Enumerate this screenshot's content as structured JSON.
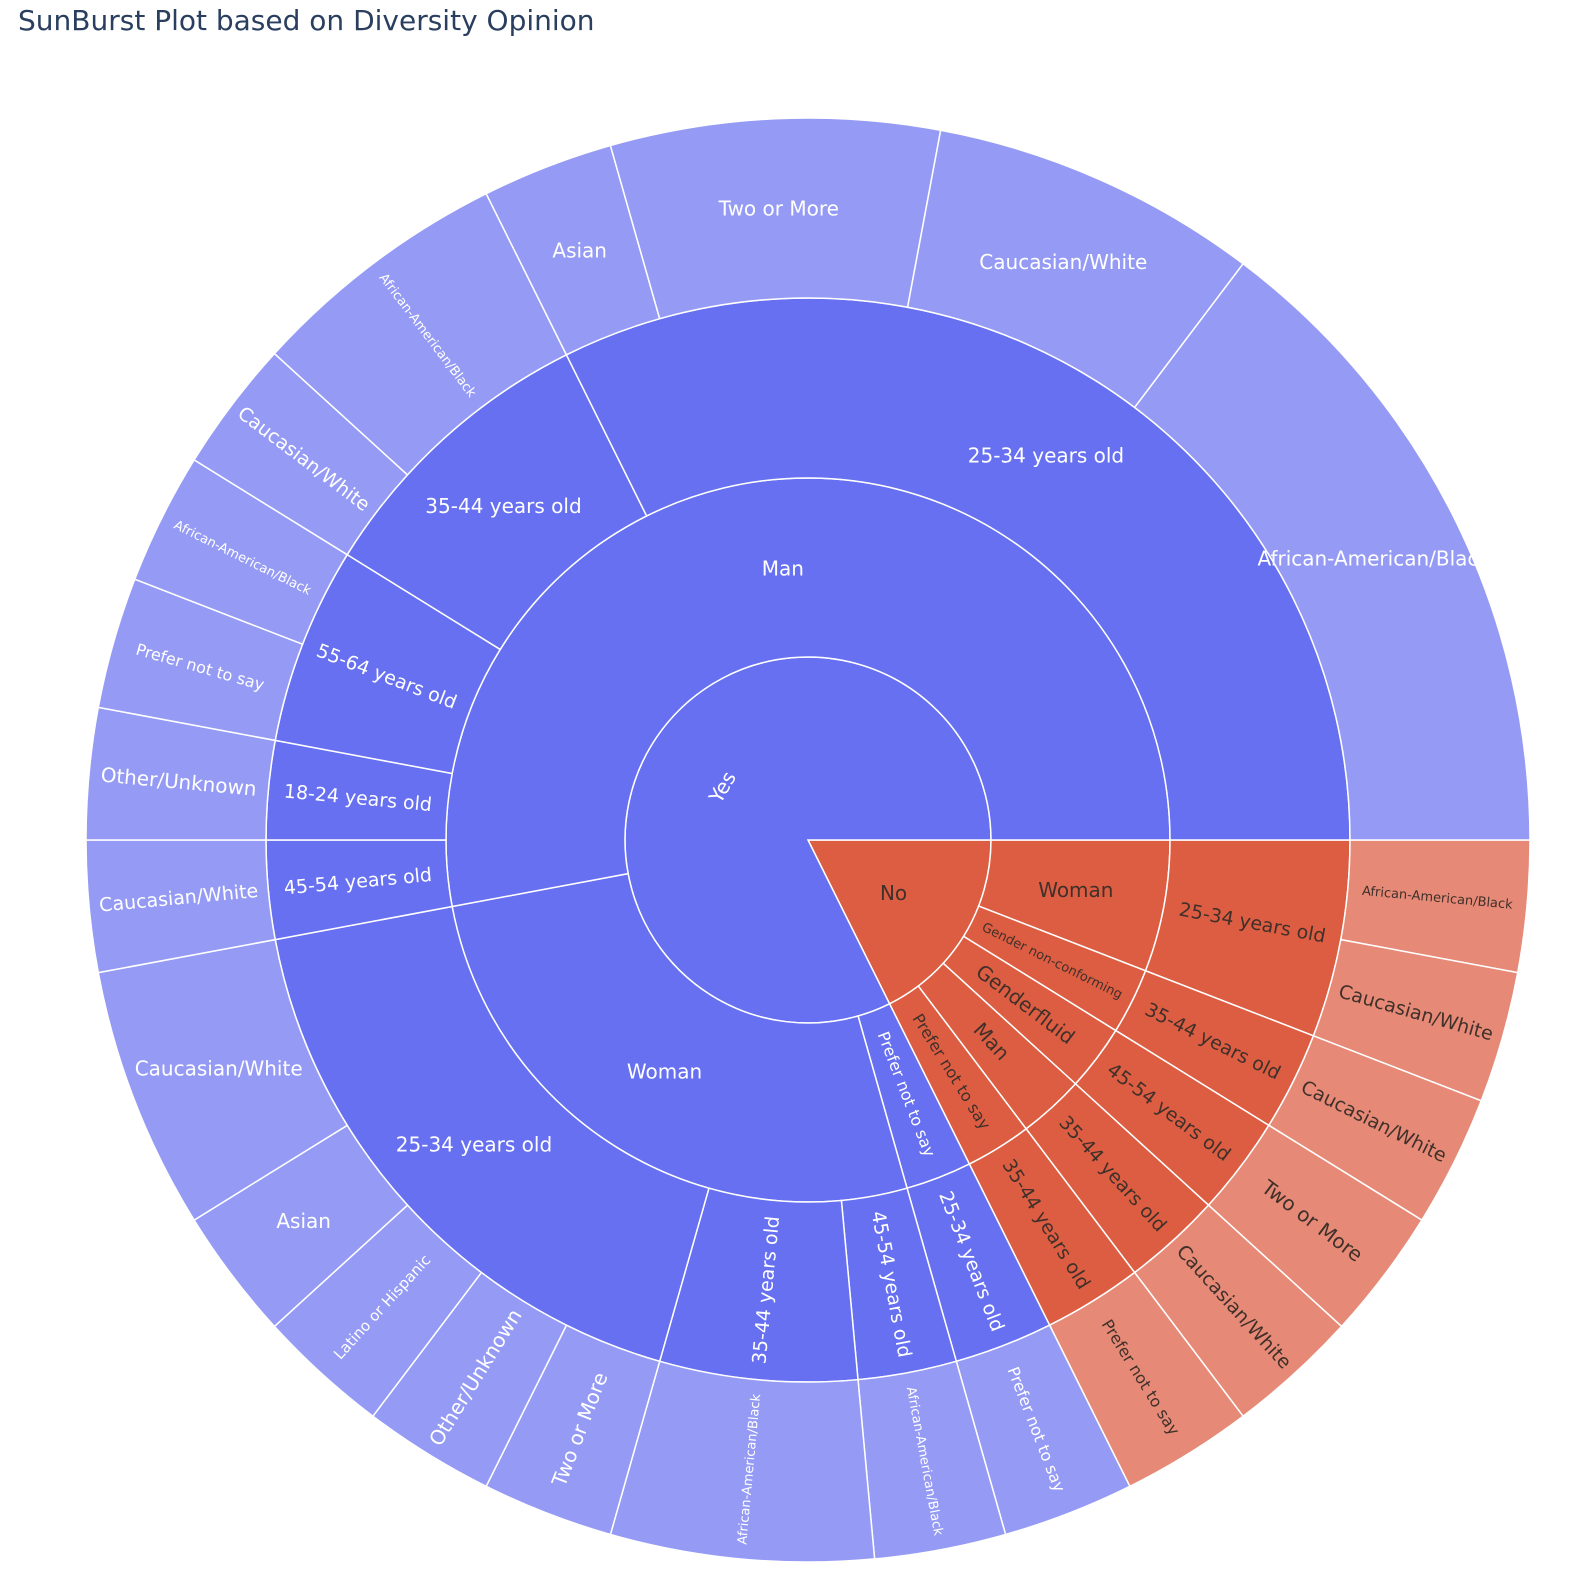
{
  "chart_data": {
    "type": "sunburst",
    "title": "SunBurst Plot based on Diversity Opinion",
    "colors": {
      "Yes": [
        "#6670f0",
        "#6670f0",
        "#6670f0",
        "#959bf4"
      ],
      "No": [
        "#dc5d42",
        "#dc5d42",
        "#dc5d42",
        "#e68a77"
      ],
      "label_on_blue": "#ffffff",
      "label_on_orange": "#40302a"
    },
    "root": {
      "children": [
        {
          "label": "Yes",
          "children": [
            {
              "label": "Man",
              "children": [
                {
                  "label": "25-34 years old",
                  "children": [
                    {
                      "label": "African-American/Black",
                      "value": 6
                    },
                    {
                      "label": "Caucasian/White",
                      "value": 3
                    },
                    {
                      "label": "Two or More",
                      "value": 3
                    },
                    {
                      "label": "Asian",
                      "value": 1.2
                    }
                  ]
                },
                {
                  "label": "35-44 years old",
                  "children": [
                    {
                      "label": "African-American/Black",
                      "value": 2.4
                    },
                    {
                      "label": "Caucasian/White",
                      "value": 1.2
                    }
                  ]
                },
                {
                  "label": "55-64 years old",
                  "children": [
                    {
                      "label": "African-American/Black",
                      "value": 1.2
                    },
                    {
                      "label": "Prefer not to say",
                      "value": 1.2
                    }
                  ]
                },
                {
                  "label": "18-24 years old",
                  "children": [
                    {
                      "label": "Other/Unknown",
                      "value": 1.2
                    }
                  ]
                },
                {
                  "label": "45-54 years old",
                  "children": [
                    {
                      "label": "Caucasian/White",
                      "value": 1.2
                    }
                  ]
                }
              ]
            },
            {
              "label": "Woman",
              "children": [
                {
                  "label": "25-34 years old",
                  "children": [
                    {
                      "label": "Caucasian/White",
                      "value": 2.4
                    },
                    {
                      "label": "Asian",
                      "value": 1.2
                    },
                    {
                      "label": "Latino or Hispanic",
                      "value": 1.2
                    },
                    {
                      "label": "Other/Unknown",
                      "value": 1.2
                    },
                    {
                      "label": "Two or More",
                      "value": 1.2
                    }
                  ]
                },
                {
                  "label": "35-44 years old",
                  "children": [
                    {
                      "label": "African-American/Black",
                      "value": 2.4
                    }
                  ]
                },
                {
                  "label": "45-54 years old",
                  "children": [
                    {
                      "label": "African-American/Black",
                      "value": 1.2
                    }
                  ]
                }
              ]
            },
            {
              "label": "Prefer not to say",
              "children": [
                {
                  "label": "25-34 years old",
                  "children": [
                    {
                      "label": "Prefer not to say",
                      "value": 1.2
                    }
                  ]
                }
              ]
            }
          ]
        },
        {
          "label": "No",
          "children": [
            {
              "label": "Woman",
              "children": [
                {
                  "label": "25-34 years old",
                  "children": [
                    {
                      "label": "African-American/Black",
                      "value": 1.2
                    },
                    {
                      "label": "Caucasian/White",
                      "value": 1.2
                    }
                  ]
                }
              ]
            },
            {
              "label": "Gender non-conforming",
              "children": [
                {
                  "label": "35-44 years old",
                  "children": [
                    {
                      "label": "Caucasian/White",
                      "value": 1.2
                    }
                  ]
                }
              ]
            },
            {
              "label": "Genderfluid",
              "children": [
                {
                  "label": "45-54 years old",
                  "children": [
                    {
                      "label": "Two or More",
                      "value": 1.2
                    }
                  ]
                }
              ]
            },
            {
              "label": "Man",
              "children": [
                {
                  "label": "35-44 years old",
                  "children": [
                    {
                      "label": "Caucasian/White",
                      "value": 1.2
                    }
                  ]
                }
              ]
            },
            {
              "label": "Prefer not to say",
              "children": [
                {
                  "label": "35-44 years old",
                  "children": [
                    {
                      "label": "Prefer not to say",
                      "value": 1.2
                    }
                  ]
                }
              ]
            }
          ]
        }
      ]
    }
  }
}
